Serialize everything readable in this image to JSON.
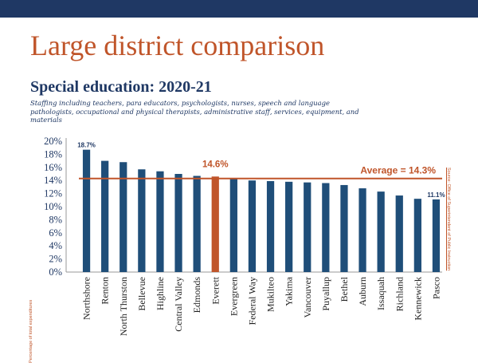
{
  "header": {
    "title": "Large district comparison",
    "bar_color": "#1f3864"
  },
  "chart_data": {
    "type": "bar",
    "title": "Special education:  2020-21",
    "subtitle": "Staffing including teachers, para educators, psychologists, nurses, speech and language pathologists, occupational and physical therapists, administrative staff, services, equipment, and materials",
    "ylabel": "Percentage of total expenditures",
    "source": "Source: Office of Superintendent of Public Instruction",
    "categories": [
      "Northshore",
      "Renton",
      "North Thurston",
      "Bellevue",
      "Highline",
      "Central Valley",
      "Edmonds",
      "Everett",
      "Evergreen",
      "Federal Way",
      "Mukilteo",
      "Yakima",
      "Vancouver",
      "Puyallup",
      "Bethel",
      "Auburn",
      "Issaquah",
      "Richland",
      "Kennewick",
      "Pasco"
    ],
    "values": [
      18.7,
      17.0,
      16.8,
      15.7,
      15.4,
      15.0,
      14.7,
      14.6,
      14.3,
      14.0,
      13.9,
      13.8,
      13.7,
      13.6,
      13.3,
      12.8,
      12.3,
      11.7,
      11.2,
      11.1
    ],
    "ylim": [
      0,
      20
    ],
    "yticks": [
      "0%",
      "2%",
      "4%",
      "6%",
      "8%",
      "10%",
      "12%",
      "14%",
      "16%",
      "18%",
      "20%"
    ],
    "grid": false,
    "highlight_index": 7,
    "data_labels": [
      {
        "index": 0,
        "text": "18.7%"
      },
      {
        "index": 7,
        "text": "14.6%"
      },
      {
        "index": 19,
        "text": "11.1%"
      }
    ],
    "average": {
      "value": 14.3,
      "label": "Average = 14.3%"
    },
    "colors": {
      "bar": "#1f4e79",
      "highlight": "#c0552a",
      "average_line": "#c0552a",
      "axis_text": "#1f3864"
    }
  }
}
